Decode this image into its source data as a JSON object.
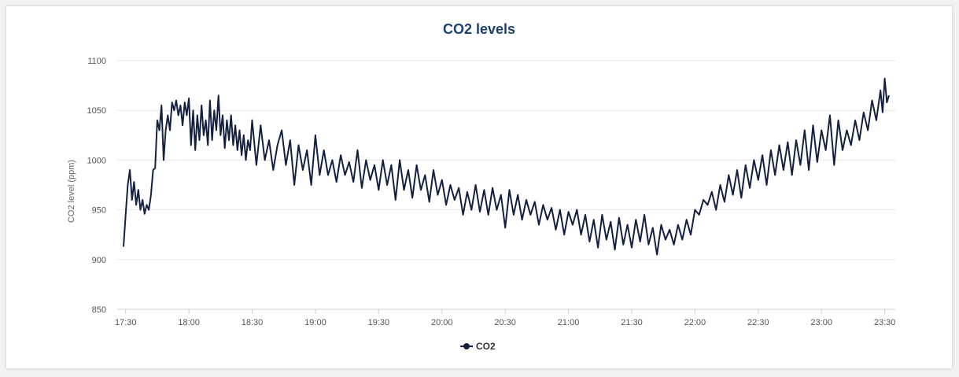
{
  "chart_data": {
    "type": "line",
    "title": "CO2 levels",
    "xlabel": "",
    "ylabel": "CO2 level (ppm)",
    "x_unit": "time of day",
    "xlim": [
      "17:26",
      "23:35"
    ],
    "ylim": [
      850,
      1100
    ],
    "y_ticks": [
      "850",
      "900",
      "950",
      "1000",
      "1050",
      "1100"
    ],
    "x_ticks": [
      "17:30",
      "18:00",
      "18:30",
      "19:00",
      "19:30",
      "20:00",
      "20:30",
      "21:00",
      "21:30",
      "22:00",
      "22:30",
      "23:00",
      "23:30"
    ],
    "grid": "horizontal",
    "legend_position": "bottom-center",
    "colors": {
      "title": "#1f3f6e",
      "series": "#14203f",
      "grid": "#e6e6e6",
      "axis": "#cccccc"
    },
    "series": [
      {
        "name": "CO2",
        "color": "#14203f",
        "points": [
          [
            "17:29",
            913
          ],
          [
            "17:30",
            945
          ],
          [
            "17:31",
            975
          ],
          [
            "17:32",
            990
          ],
          [
            "17:33",
            960
          ],
          [
            "17:34",
            978
          ],
          [
            "17:35",
            955
          ],
          [
            "17:36",
            970
          ],
          [
            "17:37",
            950
          ],
          [
            "17:38",
            960
          ],
          [
            "17:39",
            946
          ],
          [
            "17:40",
            955
          ],
          [
            "17:41",
            950
          ],
          [
            "17:42",
            965
          ],
          [
            "17:43",
            990
          ],
          [
            "17:44",
            992
          ],
          [
            "17:45",
            1040
          ],
          [
            "17:46",
            1030
          ],
          [
            "17:47",
            1055
          ],
          [
            "17:48",
            1000
          ],
          [
            "17:49",
            1030
          ],
          [
            "17:50",
            1045
          ],
          [
            "17:51",
            1030
          ],
          [
            "17:52",
            1058
          ],
          [
            "17:53",
            1050
          ],
          [
            "17:54",
            1060
          ],
          [
            "17:55",
            1045
          ],
          [
            "17:56",
            1055
          ],
          [
            "17:57",
            1035
          ],
          [
            "17:58",
            1058
          ],
          [
            "17:59",
            1045
          ],
          [
            "18:00",
            1062
          ],
          [
            "18:01",
            1015
          ],
          [
            "18:02",
            1050
          ],
          [
            "18:03",
            1010
          ],
          [
            "18:04",
            1045
          ],
          [
            "18:05",
            1020
          ],
          [
            "18:06",
            1055
          ],
          [
            "18:07",
            1025
          ],
          [
            "18:08",
            1040
          ],
          [
            "18:09",
            1015
          ],
          [
            "18:10",
            1060
          ],
          [
            "18:11",
            1020
          ],
          [
            "18:12",
            1050
          ],
          [
            "18:13",
            1030
          ],
          [
            "18:14",
            1065
          ],
          [
            "18:15",
            1025
          ],
          [
            "18:16",
            1045
          ],
          [
            "18:17",
            1012
          ],
          [
            "18:18",
            1040
          ],
          [
            "18:19",
            1020
          ],
          [
            "18:20",
            1045
          ],
          [
            "18:21",
            1015
          ],
          [
            "18:22",
            1035
          ],
          [
            "18:23",
            1010
          ],
          [
            "18:24",
            1030
          ],
          [
            "18:25",
            1005
          ],
          [
            "18:26",
            1025
          ],
          [
            "18:27",
            1000
          ],
          [
            "18:28",
            1020
          ],
          [
            "18:29",
            1010
          ],
          [
            "18:30",
            1040
          ],
          [
            "18:32",
            995
          ],
          [
            "18:34",
            1035
          ],
          [
            "18:36",
            1000
          ],
          [
            "18:38",
            1020
          ],
          [
            "18:40",
            990
          ],
          [
            "18:42",
            1015
          ],
          [
            "18:44",
            1030
          ],
          [
            "18:46",
            995
          ],
          [
            "18:48",
            1020
          ],
          [
            "18:50",
            975
          ],
          [
            "18:52",
            1015
          ],
          [
            "18:54",
            990
          ],
          [
            "18:56",
            1010
          ],
          [
            "18:58",
            975
          ],
          [
            "19:00",
            1025
          ],
          [
            "19:02",
            985
          ],
          [
            "19:04",
            1010
          ],
          [
            "19:06",
            985
          ],
          [
            "19:08",
            1000
          ],
          [
            "19:10",
            978
          ],
          [
            "19:12",
            1005
          ],
          [
            "19:14",
            985
          ],
          [
            "19:16",
            998
          ],
          [
            "19:18",
            978
          ],
          [
            "19:20",
            1010
          ],
          [
            "19:22",
            972
          ],
          [
            "19:24",
            1000
          ],
          [
            "19:26",
            980
          ],
          [
            "19:28",
            995
          ],
          [
            "19:30",
            970
          ],
          [
            "19:32",
            1000
          ],
          [
            "19:34",
            975
          ],
          [
            "19:36",
            995
          ],
          [
            "19:38",
            960
          ],
          [
            "19:40",
            1000
          ],
          [
            "19:42",
            970
          ],
          [
            "19:44",
            990
          ],
          [
            "19:46",
            962
          ],
          [
            "19:48",
            995
          ],
          [
            "19:50",
            970
          ],
          [
            "19:52",
            985
          ],
          [
            "19:54",
            958
          ],
          [
            "19:56",
            990
          ],
          [
            "19:58",
            965
          ],
          [
            "20:00",
            980
          ],
          [
            "20:02",
            955
          ],
          [
            "20:04",
            975
          ],
          [
            "20:06",
            960
          ],
          [
            "20:08",
            972
          ],
          [
            "20:10",
            945
          ],
          [
            "20:12",
            968
          ],
          [
            "20:14",
            950
          ],
          [
            "20:16",
            975
          ],
          [
            "20:18",
            948
          ],
          [
            "20:20",
            970
          ],
          [
            "20:22",
            945
          ],
          [
            "20:24",
            972
          ],
          [
            "20:26",
            950
          ],
          [
            "20:28",
            965
          ],
          [
            "20:30",
            932
          ],
          [
            "20:32",
            970
          ],
          [
            "20:34",
            945
          ],
          [
            "20:36",
            965
          ],
          [
            "20:38",
            940
          ],
          [
            "20:40",
            960
          ],
          [
            "20:42",
            945
          ],
          [
            "20:44",
            958
          ],
          [
            "20:46",
            935
          ],
          [
            "20:48",
            955
          ],
          [
            "20:50",
            940
          ],
          [
            "20:52",
            952
          ],
          [
            "20:54",
            930
          ],
          [
            "20:56",
            950
          ],
          [
            "20:58",
            925
          ],
          [
            "21:00",
            948
          ],
          [
            "21:02",
            935
          ],
          [
            "21:04",
            950
          ],
          [
            "21:06",
            925
          ],
          [
            "21:08",
            945
          ],
          [
            "21:10",
            918
          ],
          [
            "21:12",
            940
          ],
          [
            "21:14",
            912
          ],
          [
            "21:16",
            945
          ],
          [
            "21:18",
            920
          ],
          [
            "21:20",
            938
          ],
          [
            "21:22",
            910
          ],
          [
            "21:24",
            942
          ],
          [
            "21:26",
            915
          ],
          [
            "21:28",
            935
          ],
          [
            "21:30",
            912
          ],
          [
            "21:32",
            940
          ],
          [
            "21:34",
            918
          ],
          [
            "21:36",
            945
          ],
          [
            "21:38",
            915
          ],
          [
            "21:40",
            932
          ],
          [
            "21:42",
            905
          ],
          [
            "21:44",
            935
          ],
          [
            "21:46",
            920
          ],
          [
            "21:48",
            930
          ],
          [
            "21:50",
            915
          ],
          [
            "21:52",
            935
          ],
          [
            "21:54",
            920
          ],
          [
            "21:56",
            940
          ],
          [
            "21:58",
            925
          ],
          [
            "22:00",
            950
          ],
          [
            "22:02",
            945
          ],
          [
            "22:04",
            960
          ],
          [
            "22:06",
            955
          ],
          [
            "22:08",
            968
          ],
          [
            "22:10",
            950
          ],
          [
            "22:12",
            975
          ],
          [
            "22:14",
            958
          ],
          [
            "22:16",
            985
          ],
          [
            "22:18",
            965
          ],
          [
            "22:20",
            990
          ],
          [
            "22:22",
            962
          ],
          [
            "22:24",
            995
          ],
          [
            "22:26",
            972
          ],
          [
            "22:28",
            1000
          ],
          [
            "22:30",
            980
          ],
          [
            "22:32",
            1005
          ],
          [
            "22:34",
            975
          ],
          [
            "22:36",
            1010
          ],
          [
            "22:38",
            985
          ],
          [
            "22:40",
            1015
          ],
          [
            "22:42",
            990
          ],
          [
            "22:44",
            1018
          ],
          [
            "22:46",
            985
          ],
          [
            "22:48",
            1020
          ],
          [
            "22:50",
            995
          ],
          [
            "22:52",
            1030
          ],
          [
            "22:54",
            990
          ],
          [
            "22:56",
            1035
          ],
          [
            "22:58",
            998
          ],
          [
            "23:00",
            1030
          ],
          [
            "23:02",
            1010
          ],
          [
            "23:04",
            1045
          ],
          [
            "23:06",
            995
          ],
          [
            "23:08",
            1040
          ],
          [
            "23:10",
            1010
          ],
          [
            "23:12",
            1030
          ],
          [
            "23:14",
            1015
          ],
          [
            "23:16",
            1040
          ],
          [
            "23:18",
            1020
          ],
          [
            "23:20",
            1048
          ],
          [
            "23:22",
            1030
          ],
          [
            "23:24",
            1060
          ],
          [
            "23:26",
            1040
          ],
          [
            "23:28",
            1070
          ],
          [
            "23:29",
            1048
          ],
          [
            "23:30",
            1082
          ],
          [
            "23:31",
            1058
          ],
          [
            "23:32",
            1065
          ]
        ]
      }
    ]
  }
}
